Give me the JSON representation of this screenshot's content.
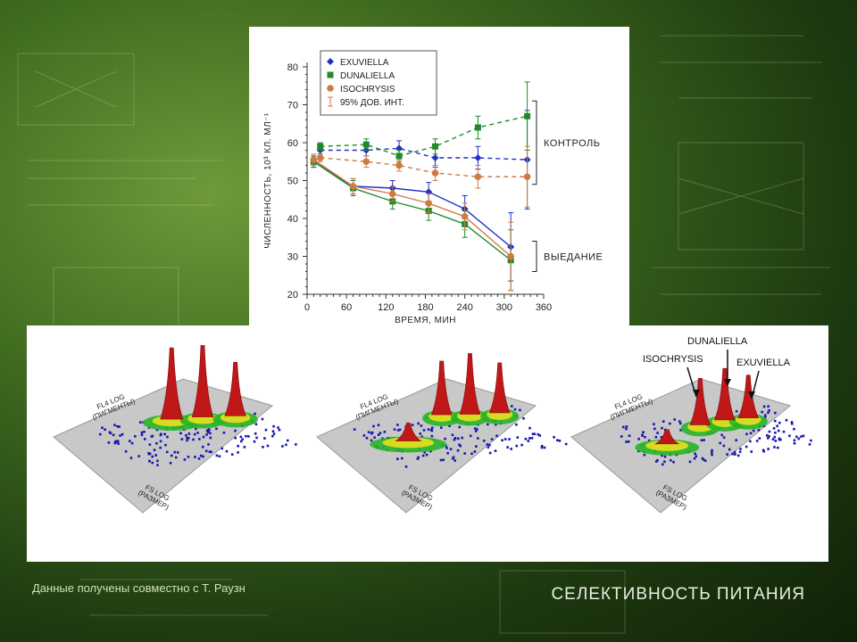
{
  "chart_data": {
    "type": "line",
    "xlabel": "ВРЕМЯ, МИН",
    "ylabel": "ЧИСЛЕННОСТЬ, 10³ КЛ. МЛ⁻¹",
    "xlim": [
      0,
      360
    ],
    "ylim": [
      20,
      80
    ],
    "x_ticks": [
      "0",
      "60",
      "120",
      "180",
      "240",
      "300",
      "360"
    ],
    "y_ticks": [
      "20",
      "30",
      "40",
      "50",
      "60",
      "70",
      "80"
    ],
    "legend_position": "top-left",
    "legend_ci_label": "95% ДОВ. ИНТ.",
    "group_labels": {
      "control": "КОНТРОЛЬ",
      "grazing": "ВЫЕДАНИЕ"
    },
    "series": [
      {
        "name": "EXUVIELLA",
        "group": "control",
        "color": "#2130c8",
        "marker": "diamond",
        "x": [
          20,
          90,
          140,
          195,
          260,
          335
        ],
        "y": [
          58,
          58,
          58.5,
          56,
          56,
          55.5
        ],
        "err": [
          1,
          1.5,
          2,
          2.5,
          3,
          13
        ]
      },
      {
        "name": "DUNALIELLA",
        "group": "control",
        "color": "#1f8a2a",
        "marker": "square",
        "x": [
          20,
          90,
          140,
          195,
          260,
          335
        ],
        "y": [
          59,
          59.5,
          56.5,
          59,
          64,
          67
        ],
        "err": [
          1,
          1.5,
          1.5,
          2,
          3,
          9
        ]
      },
      {
        "name": "ISOCHRYSIS",
        "group": "control",
        "color": "#cf7a45",
        "marker": "circle",
        "x": [
          20,
          90,
          140,
          195,
          260,
          335
        ],
        "y": [
          56,
          55,
          54,
          52,
          51,
          51
        ],
        "err": [
          1,
          1.5,
          1.5,
          2,
          3,
          8
        ]
      },
      {
        "name": "EXUVIELLA",
        "group": "grazing",
        "color": "#2130c8",
        "marker": "diamond",
        "x": [
          10,
          70,
          130,
          185,
          240,
          310
        ],
        "y": [
          55,
          48.5,
          48,
          47,
          42.5,
          32.5
        ],
        "err": [
          1.5,
          2,
          2,
          2.5,
          3.5,
          9
        ]
      },
      {
        "name": "DUNALIELLA",
        "group": "grazing",
        "color": "#1f8a2a",
        "marker": "square",
        "x": [
          10,
          70,
          130,
          185,
          240,
          310
        ],
        "y": [
          55,
          48,
          44.5,
          42,
          38.5,
          29
        ],
        "err": [
          1.5,
          2,
          2,
          2.5,
          3.5,
          8
        ]
      },
      {
        "name": "ISOCHRYSIS",
        "group": "grazing",
        "color": "#cf7a45",
        "marker": "circle",
        "x": [
          10,
          70,
          130,
          185,
          240,
          310
        ],
        "y": [
          55.5,
          48.5,
          46.5,
          44,
          40.5,
          30
        ],
        "err": [
          1.5,
          2,
          2,
          2.5,
          3.5,
          9
        ]
      }
    ]
  },
  "cytograms": {
    "y_axis_label_line1": "FL4 LOG",
    "y_axis_label_line2": "(ПИГМЕНТЫ)",
    "x_axis_label_line1": "FS LOG",
    "x_axis_label_line2": "(РАЗМЕР)",
    "peak_labels": [
      "ISOCHRYSIS",
      "DUNALIELLA",
      "EXUVIELLA"
    ],
    "colors": {
      "peak": "#c01818",
      "mid": "#e8e020",
      "base": "#28b428",
      "dots": "#1818b0",
      "plane": "#c8c8c8"
    }
  },
  "footer": {
    "credit": "Данные получены совместно с Т. Раузн",
    "title": "СЕЛЕКТИВНОСТЬ ПИТАНИЯ"
  }
}
